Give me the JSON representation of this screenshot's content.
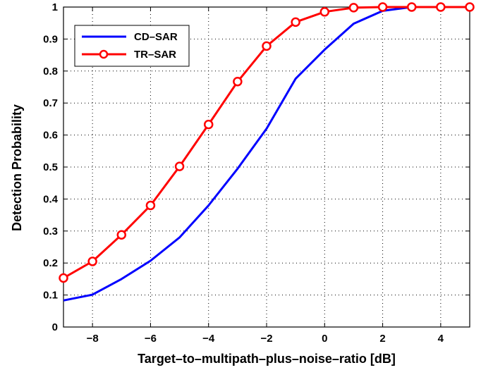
{
  "chart_data": {
    "type": "line",
    "title": "",
    "xlabel": "Target–to–multipath–plus–noise–ratio [dB]",
    "ylabel": "Detection Probability",
    "xlim": [
      -9,
      5
    ],
    "ylim": [
      0,
      1
    ],
    "xticks": [
      -8,
      -6,
      -4,
      -2,
      0,
      2,
      4
    ],
    "xtick_labels": [
      "−8",
      "−6",
      "−4",
      "−2",
      "0",
      "2",
      "4"
    ],
    "yticks": [
      0,
      0.1,
      0.2,
      0.3,
      0.4,
      0.5,
      0.6,
      0.7,
      0.8,
      0.9,
      1
    ],
    "ytick_labels": [
      "0",
      "0.1",
      "0.2",
      "0.3",
      "0.4",
      "0.5",
      "0.6",
      "0.7",
      "0.8",
      "0.9",
      "1"
    ],
    "grid": true,
    "legend_position": "top-left",
    "x": [
      -9,
      -8,
      -7,
      -6,
      -5,
      -4,
      -3,
      -2,
      -1,
      0,
      1,
      2,
      3,
      4,
      5
    ],
    "series": [
      {
        "name": "CD–SAR",
        "color": "#0000ff",
        "marker": "none",
        "values": [
          0.083,
          0.101,
          0.15,
          0.207,
          0.28,
          0.38,
          0.495,
          0.62,
          0.776,
          0.867,
          0.948,
          0.988,
          1.0,
          1.0,
          1.0
        ]
      },
      {
        "name": "TR–SAR",
        "color": "#ff0000",
        "marker": "circle",
        "values": [
          0.153,
          0.205,
          0.288,
          0.38,
          0.502,
          0.633,
          0.767,
          0.878,
          0.953,
          0.985,
          0.998,
          1.0,
          1.0,
          1.0,
          1.0
        ]
      }
    ]
  }
}
